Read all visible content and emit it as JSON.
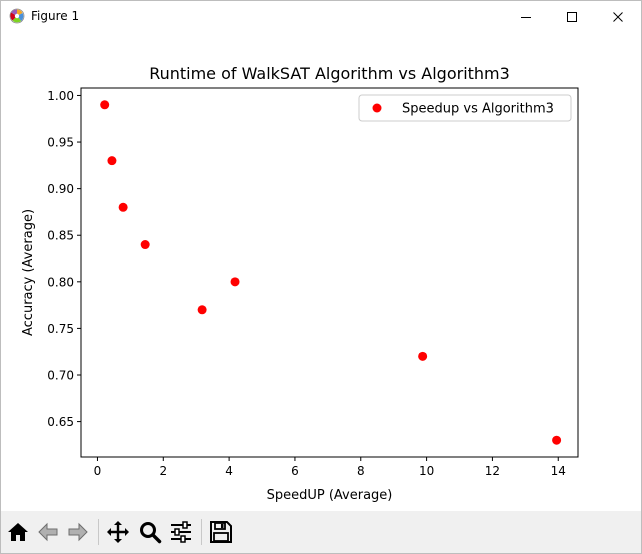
{
  "window": {
    "title": "Figure 1"
  },
  "toolbar": {
    "buttons": [
      "home-icon",
      "back-icon",
      "forward-icon",
      "pan-icon",
      "zoom-icon",
      "configure-subplots-icon",
      "save-icon"
    ]
  },
  "chart_data": {
    "type": "scatter",
    "title": "Runtime of WalkSAT Algorithm vs Algorithm3",
    "xlabel": "SpeedUP (Average)",
    "ylabel": "Accuracy (Average)",
    "xlim": [
      -0.5,
      14.6
    ],
    "ylim": [
      0.612,
      1.008
    ],
    "xticks": [
      0,
      2,
      4,
      6,
      8,
      10,
      12,
      14
    ],
    "xticklabels": [
      "0",
      "2",
      "4",
      "6",
      "8",
      "10",
      "12",
      "14"
    ],
    "yticks": [
      0.65,
      0.7,
      0.75,
      0.8,
      0.85,
      0.9,
      0.95,
      1.0
    ],
    "yticklabels": [
      "0.65",
      "0.70",
      "0.75",
      "0.80",
      "0.85",
      "0.90",
      "0.95",
      "1.00"
    ],
    "grid": false,
    "legend_position": "upper right",
    "series": [
      {
        "name": "Speedup vs Algorithm3",
        "color": "#ff0000",
        "x": [
          0.22,
          0.44,
          0.78,
          1.45,
          3.18,
          4.18,
          9.88,
          13.95
        ],
        "y": [
          0.99,
          0.93,
          0.88,
          0.84,
          0.77,
          0.8,
          0.72,
          0.63
        ]
      }
    ]
  }
}
